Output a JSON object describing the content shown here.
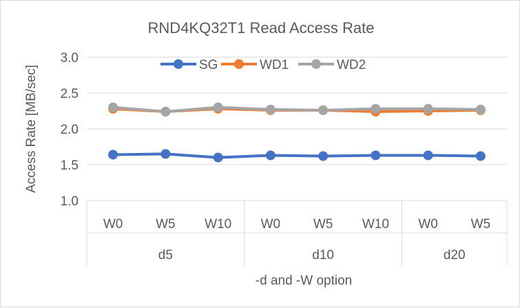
{
  "chart_data": {
    "type": "line",
    "title": "RND4KQ32T1 Read Access Rate",
    "xlabel": "-d and -W option",
    "ylabel": "Access Rate [MB/sec]",
    "ylim": [
      1.0,
      3.0
    ],
    "yticks": [
      "1.0",
      "1.5",
      "2.0",
      "2.5",
      "3.0"
    ],
    "grid": "horizontal",
    "legend": "top",
    "categories": [
      "W0",
      "W5",
      "W10",
      "W0",
      "W5",
      "W10",
      "W0",
      "W5"
    ],
    "groups": [
      {
        "label": "d5",
        "size": 3
      },
      {
        "label": "d10",
        "size": 3
      },
      {
        "label": "d20",
        "size": 2
      }
    ],
    "series": [
      {
        "name": "SG",
        "color": "#4472c4",
        "values": [
          1.64,
          1.65,
          1.6,
          1.63,
          1.62,
          1.63,
          1.63,
          1.62
        ]
      },
      {
        "name": "WD1",
        "color": "#ed7d31",
        "values": [
          2.28,
          2.24,
          2.28,
          2.26,
          2.26,
          2.24,
          2.25,
          2.26
        ]
      },
      {
        "name": "WD2",
        "color": "#a5a5a5",
        "values": [
          2.3,
          2.24,
          2.3,
          2.27,
          2.26,
          2.28,
          2.28,
          2.27
        ]
      }
    ]
  }
}
